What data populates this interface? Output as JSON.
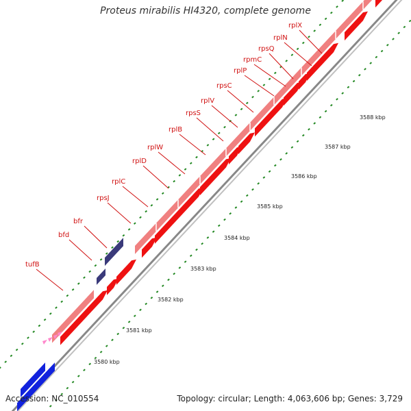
{
  "title": "Proteus mirabilis HI4320, complete genome",
  "footer": {
    "accession": "Accession: NC_010554",
    "topology": "Topology: circular; Length: 4,063,606 bp; Genes: 3,729"
  },
  "colors": {
    "cds": "#ee1111",
    "gene": "#f08080",
    "other_strand_gene": "#3a3a7a",
    "far_gene": "#1122dd",
    "trna": "#ff88cc",
    "scale_dots": "#228822",
    "label": "#d01010",
    "backbone": "#888888"
  },
  "genes": [
    {
      "name": "tufB"
    },
    {
      "name": "bfd"
    },
    {
      "name": "bfr"
    },
    {
      "name": "rpsJ"
    },
    {
      "name": "rplC"
    },
    {
      "name": "rplD"
    },
    {
      "name": "rplW"
    },
    {
      "name": "rplB"
    },
    {
      "name": "rpsS"
    },
    {
      "name": "rplV"
    },
    {
      "name": "rpsC"
    },
    {
      "name": "rplP"
    },
    {
      "name": "rpmC"
    },
    {
      "name": "rpsQ"
    },
    {
      "name": "rplN"
    },
    {
      "name": "rplX"
    }
  ],
  "ticks": [
    {
      "label": "3580 kbp"
    },
    {
      "label": "3581 kbp"
    },
    {
      "label": "3582 kbp"
    },
    {
      "label": "3583 kbp"
    },
    {
      "label": "3584 kbp"
    },
    {
      "label": "3585 kbp"
    },
    {
      "label": "3586 kbp"
    },
    {
      "label": "3587 kbp"
    },
    {
      "label": "3588 kbp"
    }
  ]
}
